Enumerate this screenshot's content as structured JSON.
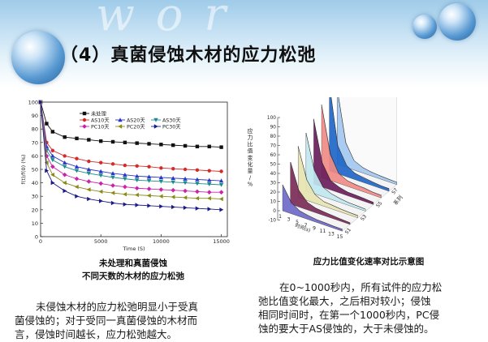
{
  "slide": {
    "title_num": "（4）",
    "title_text": "真菌侵蚀木材的应力松弛",
    "wordmark": "w o r"
  },
  "left_chart": {
    "caption_line1": "未处理和真菌侵蚀",
    "caption_line2": "不同天数的木材的应力松弛"
  },
  "right_chart": {
    "caption": "应力比值变化速率对比示意图"
  },
  "text_left": {
    "line1": "未侵蚀木材的应力松弛明显小于受真",
    "line2": "菌侵蚀的；对于受同一真菌侵蚀的木材而",
    "line3": "言，侵蚀时间越长，应力松弛越大。"
  },
  "text_right": {
    "line1": "在0~1000秒内，所有试件的应力松",
    "line2": "弛比值变化最大，之后相对较小；侵蚀",
    "line3": "相同时间时，在第一个1000秒内，PC侵",
    "line4": "蚀的要大于AS侵蚀的，大于未侵蚀的。"
  },
  "colors": {
    "untreated": "#111111",
    "as10": "#d42a2a",
    "as20": "#2a36c8",
    "as30": "#1f8a8a",
    "pc10": "#cc22aa",
    "pc20": "#8a8a18",
    "pc30": "#1a1a8a"
  },
  "chart_data": [
    {
      "type": "line",
      "title": "",
      "xlabel": "Time (S)",
      "ylabel": "f(t)/f(0) (%)",
      "xlim": [
        0,
        15500
      ],
      "ylim": [
        0,
        100
      ],
      "xticks": [
        0,
        5000,
        10000,
        15000
      ],
      "yticks": [
        0,
        10,
        20,
        30,
        40,
        50,
        60,
        70,
        80,
        90,
        100
      ],
      "legend_position": "top-center",
      "x": [
        0,
        500,
        1000,
        2000,
        3000,
        4000,
        5000,
        6000,
        7000,
        8000,
        9000,
        10000,
        11000,
        12000,
        13000,
        14000,
        15000
      ],
      "series": [
        {
          "name": "未处理",
          "marker": "square",
          "color_key": "untreated",
          "values": [
            100,
            84,
            78,
            74,
            73,
            72,
            71,
            70.5,
            70,
            69.5,
            69,
            68.5,
            68,
            67.5,
            67,
            67,
            66.5
          ]
        },
        {
          "name": "AS10天",
          "marker": "circle",
          "color_key": "as10",
          "values": [
            100,
            70,
            64,
            60,
            58,
            56,
            55,
            54,
            53,
            52.5,
            52,
            51,
            50.5,
            50,
            49.5,
            49,
            48.5
          ]
        },
        {
          "name": "AS20天",
          "marker": "triangle-up",
          "color_key": "as20",
          "values": [
            100,
            67,
            60,
            55,
            52,
            50,
            48.5,
            47,
            46,
            45,
            44.5,
            44,
            43.5,
            43,
            42.5,
            42,
            41.5
          ]
        },
        {
          "name": "AS30天",
          "marker": "triangle-down",
          "color_key": "as30",
          "values": [
            100,
            64,
            57,
            52,
            49,
            47,
            45.5,
            44,
            43,
            42,
            41.5,
            41,
            40.5,
            40,
            39.5,
            39,
            38.5
          ]
        },
        {
          "name": "PC10天",
          "marker": "diamond",
          "color_key": "pc10",
          "values": [
            100,
            60,
            52,
            46,
            43,
            41,
            39.5,
            38,
            37,
            36,
            35.5,
            35,
            34.5,
            34,
            33.5,
            33,
            33
          ]
        },
        {
          "name": "PC20天",
          "marker": "triangle-left",
          "color_key": "pc20",
          "values": [
            100,
            55,
            46,
            40,
            37,
            35,
            33.5,
            32.5,
            31.5,
            31,
            30.5,
            30,
            29.5,
            29,
            28.5,
            28.5,
            28
          ]
        },
        {
          "name": "PC30天",
          "marker": "triangle-right",
          "color_key": "pc30",
          "values": [
            100,
            49,
            40,
            34,
            30,
            28,
            26.5,
            25,
            24,
            23.5,
            23,
            22.5,
            22,
            21.5,
            21,
            20.5,
            20
          ]
        }
      ]
    },
    {
      "type": "area",
      "projection": "3d-waterfall",
      "title": "",
      "zlabel": "应力比值变化量/%",
      "xlabel": "时间(s)",
      "ylabel": "系列",
      "zlim": [
        -10,
        100
      ],
      "zticks": [
        -10,
        0,
        10,
        20,
        30,
        40,
        50,
        60,
        70,
        80,
        90,
        100
      ],
      "x": [
        1,
        3,
        5,
        7,
        9,
        11,
        13,
        15
      ],
      "xticks": [
        1,
        3,
        5,
        7,
        9,
        11,
        13,
        15
      ],
      "yticks": [
        "S1",
        "S3",
        "S5",
        "S7"
      ],
      "series": [
        {
          "name": "S1",
          "color": "#6f69c9",
          "values": [
            28,
            12,
            6,
            4,
            3,
            2.5,
            2,
            2
          ]
        },
        {
          "name": "S2",
          "color": "#7a2a57",
          "values": [
            45,
            18,
            8,
            5,
            4,
            3,
            2.5,
            2
          ]
        },
        {
          "name": "S3",
          "color": "#e6e4b0",
          "values": [
            55,
            22,
            9,
            5,
            4,
            3,
            2.5,
            2
          ]
        },
        {
          "name": "S4",
          "color": "#bfe7ef",
          "values": [
            62,
            25,
            10,
            6,
            4,
            3,
            2.5,
            2
          ]
        },
        {
          "name": "S5",
          "color": "#6a1d5a",
          "values": [
            70,
            26,
            10,
            6,
            4,
            3.5,
            3,
            2.5
          ]
        },
        {
          "name": "S6",
          "color": "#f08a84",
          "values": [
            78,
            28,
            11,
            6,
            5,
            4,
            3,
            2.5
          ]
        },
        {
          "name": "S7",
          "color": "#1e66c8",
          "values": [
            92,
            30,
            12,
            7,
            5,
            4,
            3,
            3
          ]
        },
        {
          "name": "S8",
          "color": "#a4c8f0",
          "values": [
            82,
            26,
            10,
            6,
            4,
            3.5,
            3,
            2.5
          ]
        }
      ]
    }
  ]
}
